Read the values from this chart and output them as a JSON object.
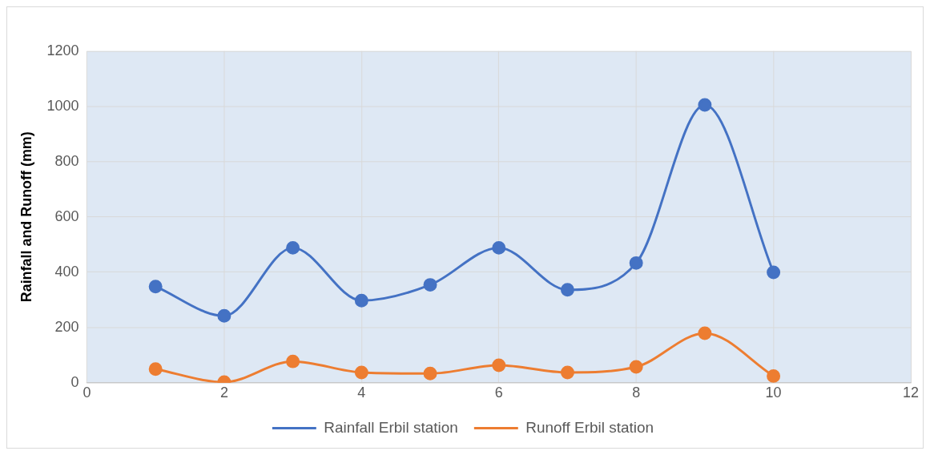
{
  "chart_data": {
    "type": "line",
    "ylabel": "Rainfall and Runoff (mm)",
    "x": [
      1,
      2,
      3,
      4,
      5,
      6,
      7,
      8,
      9,
      10
    ],
    "series": [
      {
        "name": "Rainfall Erbil station",
        "color": "#4472c4",
        "values": [
          348,
          242,
          488,
          297,
          354,
          488,
          336,
          433,
          1005,
          399
        ]
      },
      {
        "name": "Runoff Erbil station",
        "color": "#ed7d31",
        "values": [
          49,
          2,
          77,
          37,
          33,
          63,
          37,
          57,
          179,
          24
        ]
      }
    ],
    "xlim": [
      0,
      12
    ],
    "xticks": [
      0,
      2,
      4,
      6,
      8,
      10,
      12
    ],
    "ylim": [
      0,
      1200
    ],
    "yticks": [
      0,
      200,
      400,
      600,
      800,
      1000,
      1200
    ],
    "grid": true,
    "legend": "bottom",
    "marker": "circle",
    "line_style": "solid"
  }
}
